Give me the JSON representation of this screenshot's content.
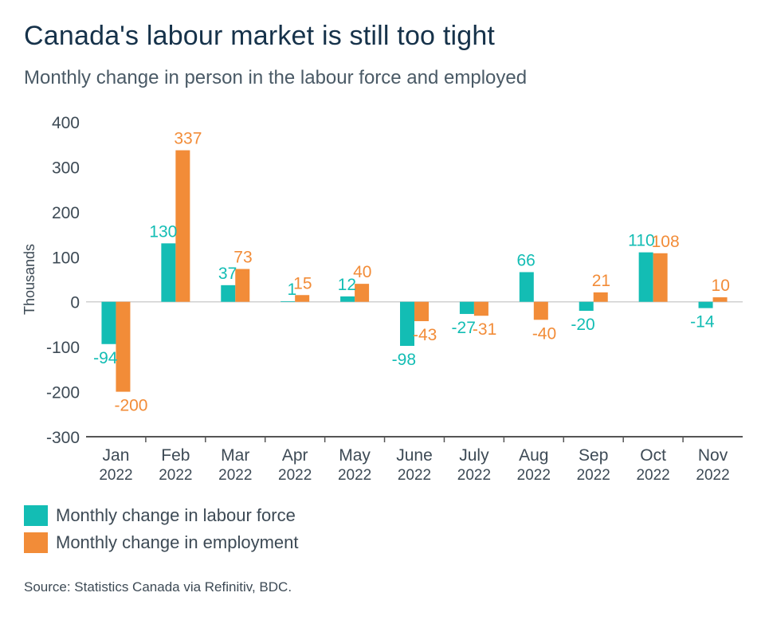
{
  "title": "Canada's labour market is still too tight",
  "subtitle": "Monthly change in person in the labour force and employed",
  "source": "Source: Statistics Canada via Refinitiv, BDC.",
  "colors": {
    "labour_force": "#13bdb4",
    "employment": "#f28c38",
    "axis": "#555555"
  },
  "chart_data": {
    "type": "bar",
    "categories": [
      {
        "month": "Jan",
        "year": "2022"
      },
      {
        "month": "Feb",
        "year": "2022"
      },
      {
        "month": "Mar",
        "year": "2022"
      },
      {
        "month": "Apr",
        "year": "2022"
      },
      {
        "month": "May",
        "year": "2022"
      },
      {
        "month": "June",
        "year": "2022"
      },
      {
        "month": "July",
        "year": "2022"
      },
      {
        "month": "Aug",
        "year": "2022"
      },
      {
        "month": "Sep",
        "year": "2022"
      },
      {
        "month": "Oct",
        "year": "2022"
      },
      {
        "month": "Nov",
        "year": "2022"
      }
    ],
    "series": [
      {
        "name": "Monthly change in labour force",
        "values": [
          -94,
          130,
          37,
          1,
          12,
          -98,
          -27,
          66,
          -20,
          110,
          -14
        ]
      },
      {
        "name": "Monthly change in employment",
        "values": [
          -200,
          337,
          73,
          15,
          40,
          -43,
          -31,
          -40,
          21,
          108,
          10
        ]
      }
    ],
    "ylabel": "Thousands",
    "ylim": [
      -300,
      400
    ],
    "yticks": [
      -300,
      -200,
      -100,
      0,
      100,
      200,
      300,
      400
    ],
    "grid": false,
    "legend": "bottom-left"
  }
}
